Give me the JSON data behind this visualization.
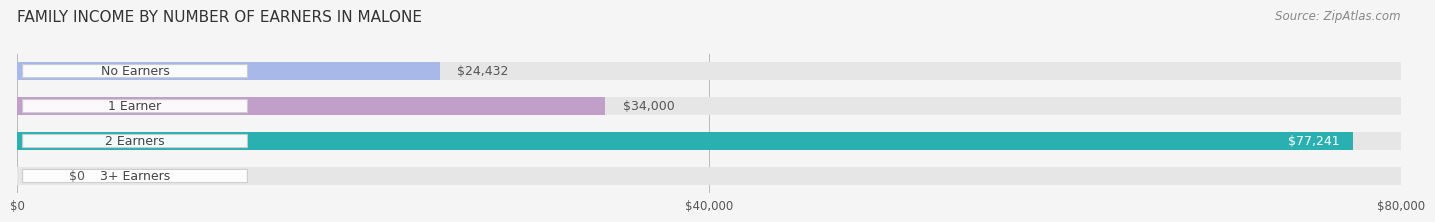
{
  "title": "FAMILY INCOME BY NUMBER OF EARNERS IN MALONE",
  "source": "Source: ZipAtlas.com",
  "categories": [
    "No Earners",
    "1 Earner",
    "2 Earners",
    "3+ Earners"
  ],
  "values": [
    24432,
    34000,
    77241,
    0
  ],
  "labels": [
    "$24,432",
    "$34,000",
    "$77,241",
    "$0"
  ],
  "bar_colors": [
    "#a8b8e8",
    "#c0a0c8",
    "#2ab0b0",
    "#b8c0e8"
  ],
  "bar_bg_color": "#e6e6e6",
  "label_colors": [
    "#555555",
    "#555555",
    "#ffffff",
    "#555555"
  ],
  "x_max": 80000,
  "x_ticks": [
    0,
    40000,
    80000
  ],
  "x_tick_labels": [
    "$0",
    "$40,000",
    "$80,000"
  ],
  "title_fontsize": 11,
  "source_fontsize": 8.5,
  "label_fontsize": 9,
  "cat_fontsize": 9,
  "background_color": "#f5f5f5"
}
